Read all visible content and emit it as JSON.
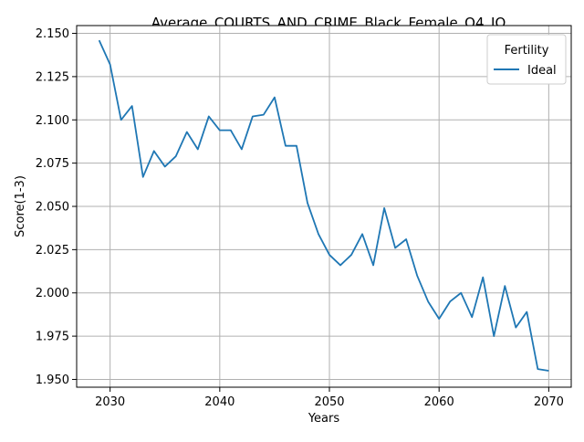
{
  "chart_data": {
    "type": "line",
    "title": "Average_COURTS_AND_CRIME_Black_Female_Q4_IQ",
    "xlabel": "Years",
    "ylabel": "Score(1-3)",
    "xlim": [
      2026.95,
      2072.05
    ],
    "ylim": [
      1.9455,
      2.1545
    ],
    "xticks": [
      2030,
      2040,
      2050,
      2060,
      2070
    ],
    "yticks": [
      1.95,
      1.975,
      2.0,
      2.025,
      2.05,
      2.075,
      2.1,
      2.125,
      2.15
    ],
    "xtick_labels": [
      "2030",
      "2040",
      "2050",
      "2060",
      "2070"
    ],
    "ytick_labels": [
      "1.950",
      "1.975",
      "2.000",
      "2.025",
      "2.050",
      "2.075",
      "2.100",
      "2.125",
      "2.150"
    ],
    "grid": true,
    "legend": {
      "title": "Fertility",
      "placement": "top-right"
    },
    "x": [
      2029,
      2030,
      2031,
      2032,
      2033,
      2034,
      2035,
      2036,
      2037,
      2038,
      2039,
      2040,
      2041,
      2042,
      2043,
      2044,
      2045,
      2046,
      2047,
      2048,
      2049,
      2050,
      2051,
      2052,
      2053,
      2054,
      2055,
      2056,
      2057,
      2058,
      2059,
      2060,
      2061,
      2062,
      2063,
      2064,
      2065,
      2066,
      2067,
      2068,
      2069,
      2070
    ],
    "series": [
      {
        "name": "Ideal",
        "color": "#1f77b4",
        "values": [
          2.146,
          2.132,
          2.1,
          2.108,
          2.067,
          2.082,
          2.073,
          2.079,
          2.093,
          2.083,
          2.102,
          2.094,
          2.094,
          2.083,
          2.102,
          2.103,
          2.113,
          2.085,
          2.085,
          2.052,
          2.034,
          2.022,
          2.016,
          2.022,
          2.034,
          2.016,
          2.049,
          2.026,
          2.031,
          2.01,
          1.995,
          1.985,
          1.995,
          2.0,
          1.986,
          2.009,
          1.975,
          2.004,
          1.98,
          1.989,
          1.956,
          1.955
        ]
      }
    ]
  }
}
